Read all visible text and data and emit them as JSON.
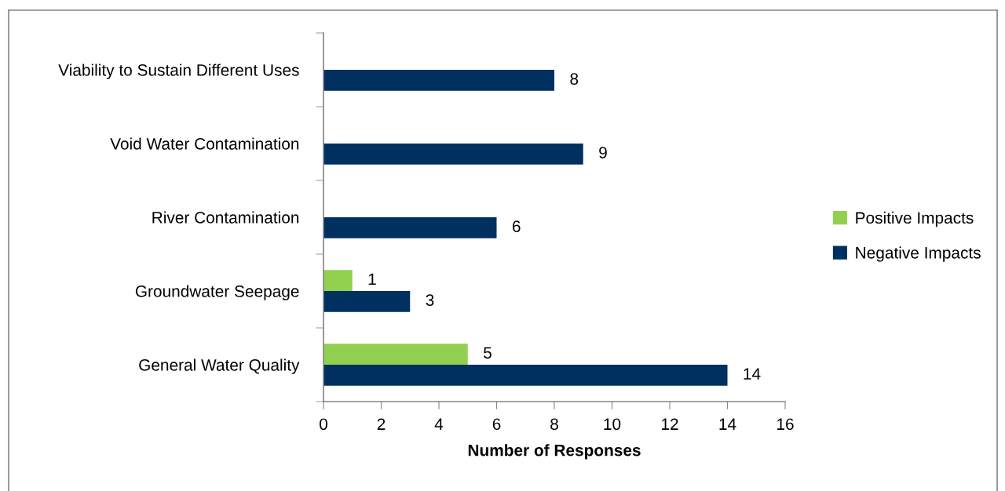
{
  "chart_data": {
    "type": "bar",
    "orientation": "horizontal",
    "categories": [
      "Viability to Sustain Different Uses",
      "Void Water Contamination",
      "River Contamination",
      "Groundwater Seepage",
      "General Water Quality"
    ],
    "series": [
      {
        "name": "Positive Impacts",
        "color": "#92d050",
        "values": [
          null,
          null,
          null,
          1,
          5
        ]
      },
      {
        "name": "Negative Impacts",
        "color": "#003060",
        "values": [
          8,
          9,
          6,
          3,
          14
        ]
      }
    ],
    "xlabel": "Number of Responses",
    "xlim": [
      0,
      16
    ],
    "xticks": [
      0,
      2,
      4,
      6,
      8,
      10,
      12,
      14,
      16
    ],
    "data_labels": true,
    "legend": "right",
    "grid": false
  }
}
